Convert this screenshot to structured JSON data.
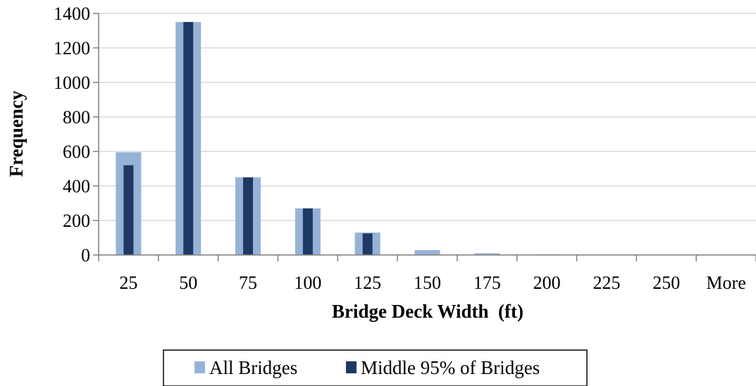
{
  "chart_data": {
    "type": "bar",
    "title": "",
    "xlabel": "Bridge Deck Width  (ft)",
    "ylabel": "Frequency",
    "categories": [
      "25",
      "50",
      "75",
      "100",
      "125",
      "150",
      "175",
      "200",
      "225",
      "250",
      "More"
    ],
    "series": [
      {
        "name": "All Bridges",
        "color": "#95b3d7",
        "values": [
          595,
          1350,
          450,
          270,
          130,
          28,
          10,
          4,
          2,
          1,
          0
        ]
      },
      {
        "name": "Middle 95% of Bridges",
        "color": "#1f3864",
        "values": [
          520,
          1350,
          450,
          270,
          125,
          0,
          0,
          0,
          0,
          0,
          0
        ]
      }
    ],
    "ylim": [
      0,
      1400
    ],
    "yticks": [
      0,
      200,
      400,
      600,
      800,
      1000,
      1200,
      1400
    ],
    "grid": true,
    "legend_position": "bottom"
  }
}
